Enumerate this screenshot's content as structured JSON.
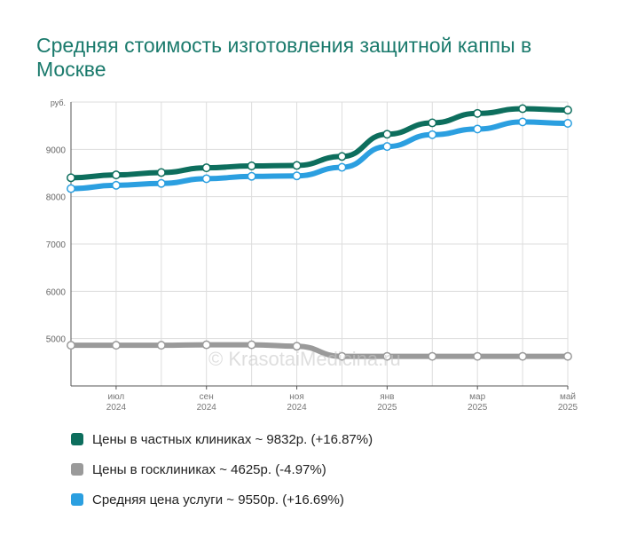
{
  "title": "Средняя стоимость изготовления защитной каппы в Москве",
  "watermark": "© KrasotaiMedicina.ru",
  "colors": {
    "private": "#0d6e5d",
    "public": "#9a9a9a",
    "average": "#2b9fe0",
    "grid": "#dddddd",
    "axis": "#555555"
  },
  "chart_data": {
    "type": "line",
    "ylabel": "руб.",
    "ylim": [
      4000,
      10000
    ],
    "yticks": [
      5000,
      6000,
      7000,
      8000,
      9000
    ],
    "x_ticks": [
      {
        "label": "июл",
        "sub": "2024",
        "idx": 1
      },
      {
        "label": "сен",
        "sub": "2024",
        "idx": 3
      },
      {
        "label": "ноя",
        "sub": "2024",
        "idx": 5
      },
      {
        "label": "янв",
        "sub": "2025",
        "idx": 7
      },
      {
        "label": "мар",
        "sub": "2025",
        "idx": 9
      },
      {
        "label": "май",
        "sub": "2025",
        "idx": 11
      }
    ],
    "x": [
      "2024-06",
      "2024-07",
      "2024-08",
      "2024-09",
      "2024-10",
      "2024-11",
      "2024-12",
      "2025-01",
      "2025-02",
      "2025-03",
      "2025-04",
      "2025-05"
    ],
    "series": [
      {
        "key": "private",
        "values": [
          8400,
          8460,
          8510,
          8610,
          8650,
          8660,
          8850,
          9320,
          9560,
          9760,
          9860,
          9830
        ]
      },
      {
        "key": "average",
        "values": [
          8170,
          8240,
          8280,
          8380,
          8430,
          8440,
          8620,
          9060,
          9310,
          9430,
          9580,
          9550
        ]
      },
      {
        "key": "public",
        "values": [
          4860,
          4860,
          4860,
          4870,
          4870,
          4840,
          4625,
          4625,
          4625,
          4625,
          4625,
          4625
        ]
      }
    ]
  },
  "legend": {
    "private": "Цены в частных клиниках ~ 9832р. (+16.87%)",
    "public": "Цены в госклиниках ~ 4625р. (-4.97%)",
    "average": "Средняя цена услуги ~ 9550р. (+16.69%)"
  }
}
